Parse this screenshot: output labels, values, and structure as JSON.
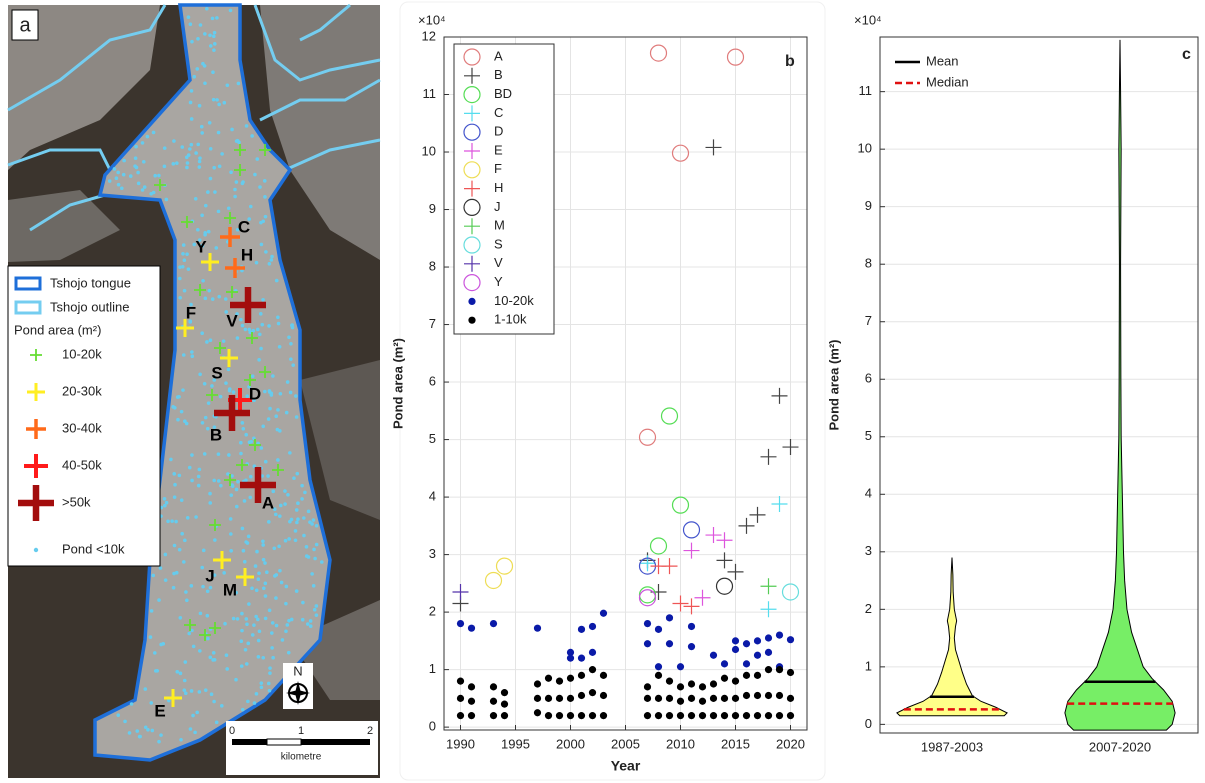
{
  "map": {
    "panel_label": "a",
    "legend": {
      "lines": [
        {
          "label": "Tshojo tongue",
          "color": "#1e6fd9"
        },
        {
          "label": "Tshojo outline",
          "color": "#74cdf0"
        }
      ],
      "title": "Pond area (m²)",
      "classes": [
        {
          "label": "10-20k",
          "color": "#66dd33"
        },
        {
          "label": "20-30k",
          "color": "#ffee22"
        },
        {
          "label": "30-40k",
          "color": "#ff6a1a"
        },
        {
          "label": "40-50k",
          "color": "#ff1a1a"
        },
        {
          "label": ">50k",
          "color": "#a30d0d"
        }
      ],
      "dot": {
        "label": "Pond <10k",
        "color": "#66ccee"
      }
    },
    "ponds": [
      "C",
      "Y",
      "H",
      "V",
      "F",
      "S",
      "D",
      "B",
      "A",
      "J",
      "M",
      "E"
    ],
    "north": "N",
    "scale": {
      "ticks": [
        "0",
        "1",
        "2"
      ],
      "unit": "kilometre"
    }
  },
  "chart_data": [
    {
      "type": "scatter",
      "panel_label": "b",
      "multiplier": "×10⁴",
      "xlabel": "Year",
      "ylabel": "Pond area (m²)",
      "xlim": [
        1988.5,
        2021.5
      ],
      "ylim": [
        -0.05,
        12
      ],
      "xticks": [
        1990,
        1995,
        2000,
        2005,
        2010,
        2015,
        2020
      ],
      "yticks": [
        0,
        1,
        2,
        3,
        4,
        5,
        6,
        7,
        8,
        9,
        10,
        11,
        12
      ],
      "grid": true,
      "legend": "upper left",
      "series": [
        {
          "name": "A",
          "color": "#e07c7c",
          "marker": "circle",
          "x": [
            2007,
            2008,
            2010,
            2015
          ],
          "values": [
            5.04,
            11.72,
            9.98,
            11.65
          ]
        },
        {
          "name": "B",
          "color": "#444444",
          "marker": "plus",
          "x": [
            1990,
            2007,
            2008,
            2013,
            2014,
            2015,
            2016,
            2017,
            2018,
            2019,
            2020
          ],
          "values": [
            2.15,
            2.9,
            2.35,
            10.08,
            2.9,
            2.7,
            3.5,
            3.69,
            4.7,
            5.76,
            4.87
          ]
        },
        {
          "name": "BD",
          "color": "#55dd55",
          "marker": "circle",
          "x": [
            2007,
            2008,
            2009,
            2010
          ],
          "values": [
            2.3,
            3.15,
            5.41,
            3.86
          ]
        },
        {
          "name": "C",
          "color": "#55ddee",
          "marker": "plus",
          "x": [
            2007,
            2018,
            2019
          ],
          "values": [
            2.85,
            2.05,
            3.88
          ]
        },
        {
          "name": "D",
          "color": "#4455cc",
          "marker": "circle",
          "x": [
            2007,
            2011
          ],
          "values": [
            2.8,
            3.43
          ]
        },
        {
          "name": "E",
          "color": "#dd55dd",
          "marker": "plus",
          "x": [
            2011,
            2012,
            2013,
            2014
          ],
          "values": [
            3.07,
            2.25,
            3.34,
            3.25
          ]
        },
        {
          "name": "F",
          "color": "#eedd55",
          "marker": "circle",
          "x": [
            1993,
            1994
          ],
          "values": [
            2.55,
            2.8
          ]
        },
        {
          "name": "H",
          "color": "#ee5555",
          "marker": "plus",
          "x": [
            2008,
            2009,
            2010,
            2011
          ],
          "values": [
            2.8,
            2.8,
            2.15,
            2.1
          ]
        },
        {
          "name": "J",
          "color": "#333333",
          "marker": "circle",
          "x": [
            2014
          ],
          "values": [
            2.45
          ]
        },
        {
          "name": "M",
          "color": "#55cc55",
          "marker": "plus",
          "x": [
            2018
          ],
          "values": [
            2.45
          ]
        },
        {
          "name": "S",
          "color": "#66dddd",
          "marker": "circle",
          "x": [
            2020
          ],
          "values": [
            2.35
          ]
        },
        {
          "name": "V",
          "color": "#5533aa",
          "marker": "plus",
          "x": [
            1990
          ],
          "values": [
            2.35
          ]
        },
        {
          "name": "Y",
          "color": "#cc55dd",
          "marker": "circle",
          "x": [
            2007
          ],
          "values": [
            2.25
          ]
        },
        {
          "name": "10-20k",
          "color": "#0a1aa8",
          "marker": "dot",
          "x": [
            1990,
            1991,
            1993,
            1997,
            2000,
            2000,
            2001,
            2001,
            2002,
            2002,
            2003,
            2007,
            2007,
            2008,
            2008,
            2009,
            2009,
            2010,
            2011,
            2011,
            2013,
            2014,
            2015,
            2015,
            2016,
            2016,
            2017,
            2017,
            2018,
            2018,
            2019,
            2019,
            2020
          ],
          "values": [
            1.8,
            1.72,
            1.8,
            1.72,
            1.3,
            1.2,
            1.7,
            1.2,
            1.75,
            1.3,
            1.98,
            1.8,
            1.45,
            1.7,
            1.05,
            1.9,
            1.45,
            1.05,
            1.75,
            1.4,
            1.25,
            1.1,
            1.5,
            1.35,
            1.45,
            1.1,
            1.5,
            1.25,
            1.55,
            1.3,
            1.6,
            1.05,
            1.52
          ]
        },
        {
          "name": "1-10k",
          "color": "#000000",
          "marker": "dot",
          "x": [
            1990,
            1990,
            1990,
            1991,
            1991,
            1991,
            1993,
            1993,
            1993,
            1994,
            1994,
            1994,
            1997,
            1997,
            1997,
            1998,
            1998,
            1998,
            1999,
            1999,
            1999,
            2000,
            2000,
            2000,
            2001,
            2001,
            2001,
            2002,
            2002,
            2002,
            2003,
            2003,
            2003,
            2007,
            2007,
            2007,
            2008,
            2008,
            2008,
            2009,
            2009,
            2009,
            2010,
            2010,
            2010,
            2011,
            2011,
            2011,
            2012,
            2012,
            2012,
            2013,
            2013,
            2013,
            2014,
            2014,
            2014,
            2015,
            2015,
            2015,
            2016,
            2016,
            2016,
            2017,
            2017,
            2017,
            2018,
            2018,
            2018,
            2019,
            2019,
            2019,
            2020,
            2020,
            2020
          ],
          "values": [
            0.2,
            0.5,
            0.8,
            0.2,
            0.45,
            0.7,
            0.2,
            0.45,
            0.7,
            0.2,
            0.4,
            0.6,
            0.25,
            0.5,
            0.75,
            0.2,
            0.5,
            0.85,
            0.2,
            0.5,
            0.8,
            0.2,
            0.5,
            0.85,
            0.2,
            0.55,
            0.9,
            0.2,
            0.6,
            1.0,
            0.2,
            0.55,
            0.9,
            0.2,
            0.5,
            0.7,
            0.2,
            0.5,
            0.9,
            0.2,
            0.5,
            0.8,
            0.2,
            0.45,
            0.7,
            0.2,
            0.5,
            0.75,
            0.2,
            0.45,
            0.7,
            0.2,
            0.5,
            0.75,
            0.2,
            0.5,
            0.85,
            0.2,
            0.5,
            0.8,
            0.2,
            0.55,
            0.9,
            0.2,
            0.55,
            0.9,
            0.2,
            0.55,
            1.0,
            0.2,
            0.55,
            1.0,
            0.2,
            0.5,
            0.95
          ]
        }
      ]
    },
    {
      "type": "violin",
      "panel_label": "c",
      "multiplier": "×10⁴",
      "ylabel": "Pond area (m²)",
      "ylim": [
        -0.15,
        11.95
      ],
      "yticks": [
        0,
        1,
        2,
        3,
        4,
        5,
        6,
        7,
        8,
        9,
        10,
        11
      ],
      "grid": true,
      "legend": "upper left",
      "categories": [
        "1987-2003",
        "2007-2020"
      ],
      "colors": [
        "#ffff88",
        "#77ee66"
      ],
      "mean": [
        0.48,
        0.74
      ],
      "median": [
        0.26,
        0.36
      ],
      "density": [
        {
          "y": [
            0.15,
            0.2,
            0.3,
            0.4,
            0.5,
            0.7,
            0.9,
            1.1,
            1.3,
            1.5,
            1.7,
            1.8,
            2.0,
            2.3,
            2.6,
            2.9
          ],
          "width": [
            0.9,
            0.95,
            0.75,
            0.5,
            0.35,
            0.25,
            0.18,
            0.12,
            0.06,
            0.04,
            0.06,
            0.08,
            0.04,
            0.02,
            0.015,
            0
          ]
        },
        {
          "y": [
            -0.1,
            0,
            0.2,
            0.4,
            0.6,
            0.8,
            1.0,
            1.3,
            1.6,
            2.0,
            2.5,
            3.0,
            4.0,
            5.0,
            6.0,
            8.0,
            10.0,
            11.0,
            11.9
          ],
          "width": [
            0.8,
            0.9,
            0.95,
            0.9,
            0.75,
            0.55,
            0.4,
            0.3,
            0.2,
            0.12,
            0.08,
            0.06,
            0.04,
            0.02,
            0.015,
            0.01,
            0.02,
            0.01,
            0
          ]
        }
      ],
      "legend_items": [
        {
          "name": "Mean",
          "color": "#000000",
          "dash": "none"
        },
        {
          "name": "Median",
          "color": "#e01010",
          "dash": "7 4"
        }
      ]
    }
  ]
}
